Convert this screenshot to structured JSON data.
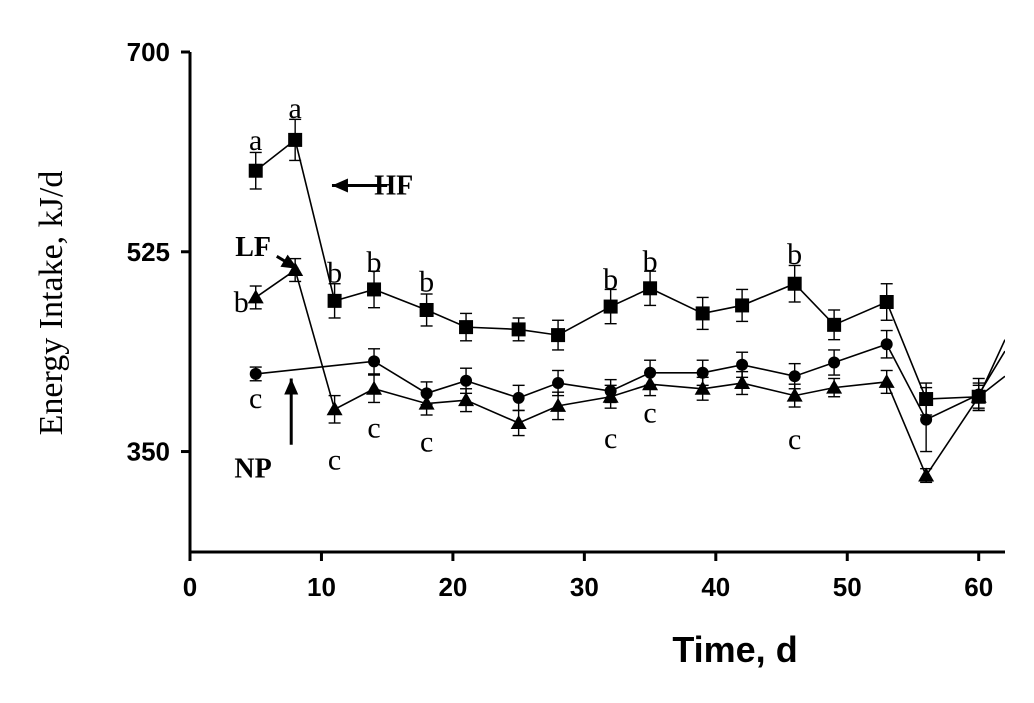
{
  "chart_data": {
    "type": "line",
    "xlabel": "Time, d",
    "ylabel": "Energy Intake, kJ/d",
    "xlim": [
      0,
      62
    ],
    "ylim": [
      262,
      700
    ],
    "xticks": [
      0,
      10,
      20,
      30,
      40,
      50,
      60
    ],
    "yticks": [
      350,
      525,
      700
    ],
    "grid": false,
    "series": [
      {
        "name": "HF",
        "marker": "square",
        "x": [
          5,
          8,
          11,
          14,
          18,
          21,
          25,
          28,
          32,
          35,
          39,
          42,
          46,
          49,
          53,
          56,
          60,
          62
        ],
        "y": [
          596,
          623,
          482,
          492,
          474,
          459,
          457,
          452,
          477,
          493,
          471,
          478,
          497,
          461,
          481,
          396,
          398,
          448
        ],
        "error": [
          16,
          18,
          15,
          16,
          14,
          12,
          10,
          13,
          15,
          15,
          14,
          14,
          16,
          13,
          16,
          14,
          10,
          null
        ]
      },
      {
        "name": "NP",
        "marker": "circle",
        "x": [
          5,
          14,
          18,
          21,
          25,
          28,
          32,
          35,
          39,
          42,
          46,
          49,
          53,
          56,
          60,
          62
        ],
        "y": [
          418,
          429,
          401,
          412,
          397,
          410,
          403,
          419,
          419,
          426,
          416,
          428,
          444,
          378,
          400,
          438
        ],
        "error": [
          6,
          11,
          10,
          11,
          11,
          11,
          10,
          11,
          11,
          11,
          11,
          11,
          12,
          28,
          14,
          null
        ]
      },
      {
        "name": "LF",
        "marker": "triangle",
        "x": [
          5,
          8,
          11,
          14,
          18,
          21,
          25,
          28,
          32,
          35,
          39,
          42,
          46,
          49,
          53,
          56,
          60,
          62
        ],
        "y": [
          485,
          509,
          387,
          405,
          392,
          395,
          375,
          390,
          398,
          409,
          405,
          410,
          399,
          406,
          411,
          329,
          398,
          416
        ],
        "error": [
          10,
          10,
          12,
          12,
          10,
          10,
          11,
          12,
          10,
          10,
          10,
          10,
          10,
          8,
          10,
          6,
          12,
          null
        ]
      }
    ],
    "annotations": [
      {
        "text": "a",
        "x": 5,
        "y": 623
      },
      {
        "text": "a",
        "x": 8,
        "y": 651
      },
      {
        "text": "b",
        "x": 11,
        "y": 507
      },
      {
        "text": "b",
        "x": 14,
        "y": 516
      },
      {
        "text": "b",
        "x": 18,
        "y": 499
      },
      {
        "text": "b",
        "x": 32,
        "y": 501
      },
      {
        "text": "b",
        "x": 35,
        "y": 517
      },
      {
        "text": "b",
        "x": 46,
        "y": 523
      },
      {
        "text": "b",
        "x": 3.9,
        "y": 481
      },
      {
        "text": "c",
        "x": 5,
        "y": 397
      },
      {
        "text": "c",
        "x": 11,
        "y": 343
      },
      {
        "text": "c",
        "x": 14,
        "y": 371
      },
      {
        "text": "c",
        "x": 18,
        "y": 359
      },
      {
        "text": "c",
        "x": 32,
        "y": 362
      },
      {
        "text": "c",
        "x": 35,
        "y": 384
      },
      {
        "text": "c",
        "x": 46,
        "y": 361
      }
    ],
    "series_labels": [
      {
        "text": "HF",
        "x": 15.5,
        "y": 584
      },
      {
        "text": "LF",
        "x": 4.8,
        "y": 530
      },
      {
        "text": "NP",
        "x": 4.8,
        "y": 336
      }
    ],
    "arrows": [
      {
        "from": [
          15,
          583
        ],
        "to": [
          10.8,
          583
        ]
      },
      {
        "from": [
          6.6,
          521
        ],
        "to": [
          8.2,
          510
        ]
      },
      {
        "from": [
          7.7,
          356
        ],
        "to": [
          7.7,
          414
        ]
      }
    ]
  }
}
